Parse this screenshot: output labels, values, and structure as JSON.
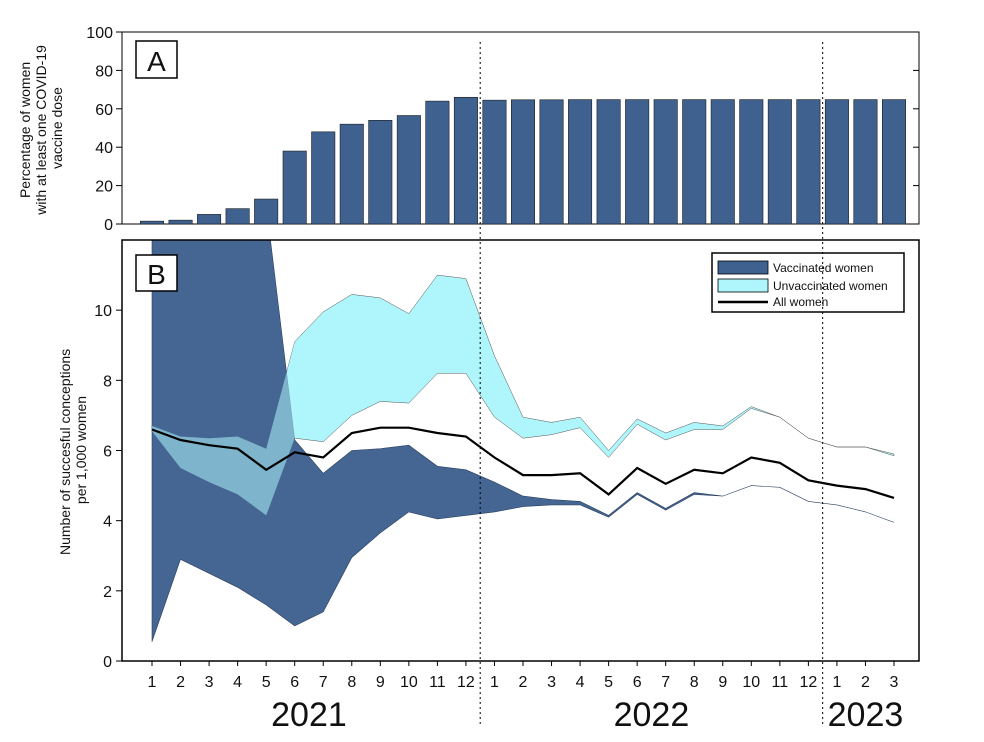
{
  "chart_data": [
    {
      "panel_label": "A",
      "type": "bar",
      "ylabel_lines": [
        "Percentage of women",
        "with at least one COVID-19",
        "vaccine dose"
      ],
      "ylim": [
        0,
        100
      ],
      "yticks": [
        0,
        20,
        40,
        60,
        80,
        100
      ],
      "values": [
        1.5,
        2,
        5,
        8,
        13,
        38,
        48,
        52,
        54,
        56.5,
        64,
        66,
        64.5,
        64.7,
        64.7,
        64.8,
        64.8,
        64.8,
        64.8,
        64.8,
        64.8,
        64.8,
        64.8,
        64.8,
        64.8,
        64.8,
        64.8
      ],
      "color": "#3f6190"
    },
    {
      "panel_label": "B",
      "type": "area",
      "ylabel_lines": [
        "Number of succesful conceptions",
        "per 1,000 women"
      ],
      "ylim": [
        0,
        12
      ],
      "yticks": [
        0,
        2,
        4,
        6,
        8,
        10
      ],
      "xtick_labels": [
        "1",
        "2",
        "3",
        "4",
        "5",
        "6",
        "7",
        "8",
        "9",
        "10",
        "11",
        "12",
        "1",
        "2",
        "3",
        "4",
        "5",
        "6",
        "7",
        "8",
        "9",
        "10",
        "11",
        "12",
        "1",
        "2",
        "3"
      ],
      "year_labels": [
        {
          "label": "2021",
          "months": [
            1,
            12
          ]
        },
        {
          "label": "2022",
          "months": [
            13,
            24
          ]
        },
        {
          "label": "2023",
          "months": [
            25,
            27
          ]
        }
      ],
      "year_dividers_after_month": [
        12,
        24
      ],
      "legend": {
        "position": "top-right",
        "entries": [
          {
            "label": "Vaccinated women",
            "kind": "patch",
            "color": "#3f6190"
          },
          {
            "label": "Unvaccinated women",
            "kind": "patch",
            "color": "#aef6fb"
          },
          {
            "label": "All women",
            "kind": "line",
            "color": "#000000"
          }
        ]
      },
      "series": [
        {
          "name": "Vaccinated women",
          "color": "#3f6190",
          "upper": [
            13,
            13,
            13,
            13,
            13,
            6.3,
            5.35,
            6.0,
            6.05,
            6.15,
            5.55,
            5.45,
            5.1,
            4.7,
            4.6,
            4.55,
            4.15,
            4.8,
            4.35,
            4.8,
            4.7,
            5.0,
            4.95,
            4.55,
            4.45,
            4.25,
            3.95
          ],
          "lower": [
            0.55,
            2.9,
            2.5,
            2.1,
            1.6,
            1.0,
            1.4,
            2.95,
            3.65,
            4.25,
            4.05,
            4.15,
            4.25,
            4.4,
            4.45,
            4.45,
            4.1,
            4.75,
            4.3,
            4.75,
            4.7,
            5.0,
            4.95,
            4.55,
            4.45,
            4.25,
            3.95
          ]
        },
        {
          "name": "Unvaccinated women",
          "color": "#aef6fb",
          "upper": [
            6.7,
            6.4,
            6.35,
            6.4,
            6.05,
            9.1,
            9.95,
            10.45,
            10.35,
            9.9,
            11.0,
            10.9,
            8.7,
            6.95,
            6.8,
            6.95,
            6.0,
            6.9,
            6.5,
            6.8,
            6.7,
            7.25,
            6.95,
            6.35,
            6.1,
            6.1,
            5.9
          ],
          "lower": [
            6.55,
            5.5,
            5.1,
            4.75,
            4.15,
            6.35,
            6.25,
            7.0,
            7.4,
            7.35,
            8.2,
            8.2,
            6.95,
            6.35,
            6.45,
            6.65,
            5.8,
            6.75,
            6.3,
            6.6,
            6.6,
            7.2,
            6.95,
            6.35,
            6.1,
            6.1,
            5.85
          ]
        },
        {
          "name": "All women",
          "color": "#000000",
          "values": [
            6.6,
            6.3,
            6.15,
            6.05,
            5.45,
            5.95,
            5.8,
            6.5,
            6.65,
            6.65,
            6.5,
            6.4,
            5.8,
            5.3,
            5.3,
            5.35,
            4.75,
            5.5,
            5.05,
            5.45,
            5.35,
            5.8,
            5.65,
            5.15,
            5.0,
            4.9,
            4.65
          ]
        }
      ]
    }
  ]
}
